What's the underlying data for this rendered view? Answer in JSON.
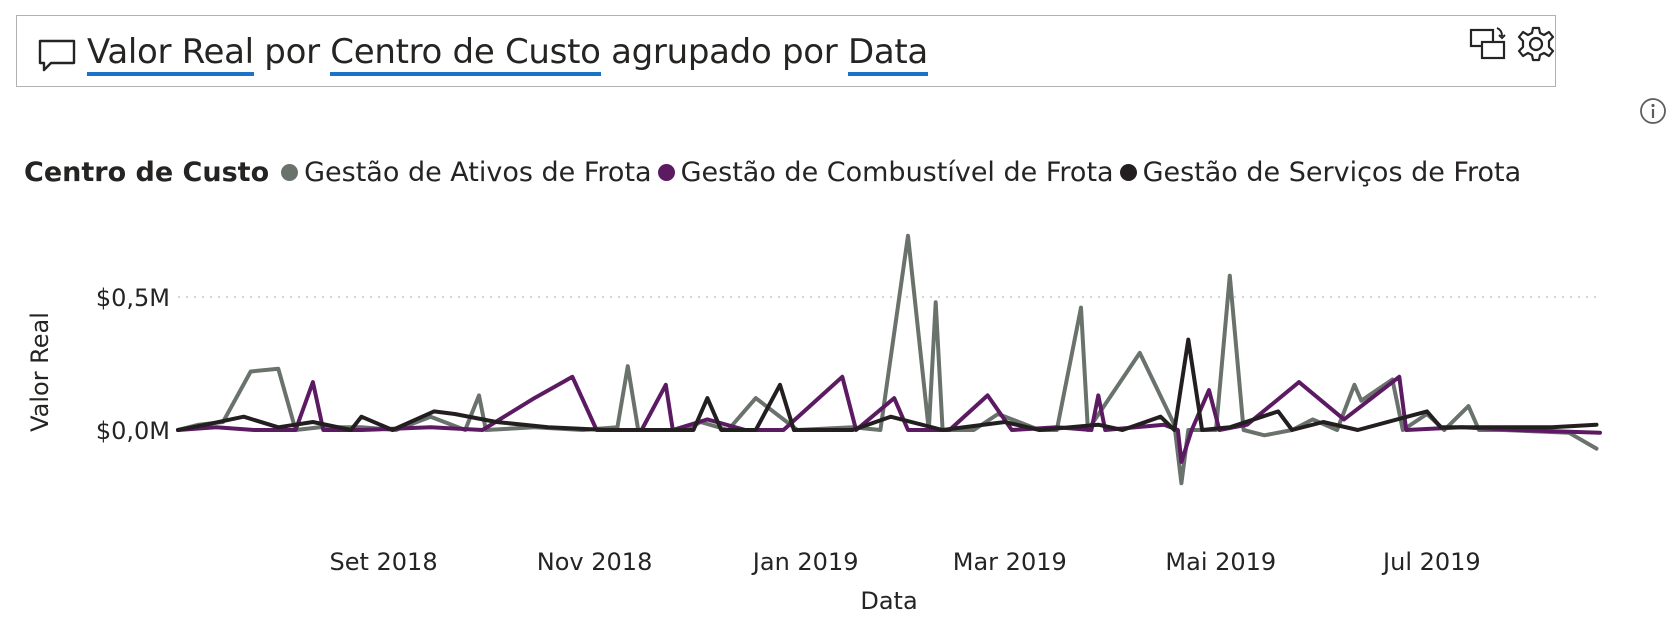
{
  "qa": {
    "parts": [
      {
        "text": "Valor Real",
        "term": true
      },
      {
        "text": " por ",
        "term": false
      },
      {
        "text": "Centro de Custo",
        "term": true
      },
      {
        "text": " agrupado por ",
        "term": false
      },
      {
        "text": "Data",
        "term": true
      }
    ]
  },
  "icons": {
    "comment": "comment-icon",
    "switch": "switch-visual-icon",
    "settings": "gear-icon",
    "info": "info-icon"
  },
  "chart_data": {
    "type": "line",
    "title": "",
    "legend_title": "Centro de Custo",
    "legend_position": "top-left",
    "xlabel": "Data",
    "ylabel": "Valor Real",
    "x_tick_labels": [
      "Set 2018",
      "Nov 2018",
      "Jan 2019",
      "Mar 2019",
      "Mai 2019",
      "Jul 2019"
    ],
    "x_ticks": [
      "2018-09-01",
      "2018-11-01",
      "2019-01-01",
      "2019-03-01",
      "2019-05-01",
      "2019-07-01"
    ],
    "x_range": [
      "2018-07-14",
      "2019-08-29"
    ],
    "y_tick_labels": [
      "$0,0M",
      "$0,5M"
    ],
    "y_ticks": [
      0,
      0.5
    ],
    "y_unit": "M",
    "ylim": [
      -0.25,
      0.8
    ],
    "grid": "horizontal dotted",
    "series": [
      {
        "name": "Gestão de Ativos de Frota",
        "color": "#6a726c",
        "points": [
          [
            "2018-07-14",
            0.0
          ],
          [
            "2018-07-20",
            0.02
          ],
          [
            "2018-07-27",
            0.03
          ],
          [
            "2018-08-04",
            0.22
          ],
          [
            "2018-08-12",
            0.23
          ],
          [
            "2018-08-17",
            0.0
          ],
          [
            "2018-08-24",
            0.01
          ],
          [
            "2018-09-05",
            0.01
          ],
          [
            "2018-09-15",
            0.0
          ],
          [
            "2018-09-25",
            0.05
          ],
          [
            "2018-10-05",
            0.0
          ],
          [
            "2018-10-09",
            0.13
          ],
          [
            "2018-10-11",
            0.0
          ],
          [
            "2018-10-25",
            0.01
          ],
          [
            "2018-11-08",
            0.0
          ],
          [
            "2018-11-18",
            0.01
          ],
          [
            "2018-11-21",
            0.24
          ],
          [
            "2018-11-24",
            0.0
          ],
          [
            "2018-12-08",
            0.0
          ],
          [
            "2018-12-12",
            0.03
          ],
          [
            "2018-12-20",
            0.0
          ],
          [
            "2018-12-28",
            0.12
          ],
          [
            "2019-01-09",
            0.0
          ],
          [
            "2019-01-25",
            0.01
          ],
          [
            "2019-02-02",
            0.0
          ],
          [
            "2019-02-10",
            0.73
          ],
          [
            "2019-02-16",
            0.0
          ],
          [
            "2019-02-18",
            0.48
          ],
          [
            "2019-02-20",
            0.0
          ],
          [
            "2019-03-01",
            0.0
          ],
          [
            "2019-03-08",
            0.06
          ],
          [
            "2019-03-20",
            0.0
          ],
          [
            "2019-03-25",
            0.0
          ],
          [
            "2019-04-01",
            0.46
          ],
          [
            "2019-04-03",
            0.0
          ],
          [
            "2019-04-18",
            0.29
          ],
          [
            "2019-04-28",
            0.02
          ],
          [
            "2019-04-30",
            -0.2
          ],
          [
            "2019-05-02",
            0.0
          ],
          [
            "2019-05-10",
            0.0
          ],
          [
            "2019-05-14",
            0.58
          ],
          [
            "2019-05-18",
            0.0
          ],
          [
            "2019-05-24",
            -0.02
          ],
          [
            "2019-06-01",
            0.0
          ],
          [
            "2019-06-07",
            0.04
          ],
          [
            "2019-06-14",
            0.0
          ],
          [
            "2019-06-19",
            0.17
          ],
          [
            "2019-06-21",
            0.11
          ],
          [
            "2019-06-30",
            0.19
          ],
          [
            "2019-07-03",
            0.0
          ],
          [
            "2019-07-10",
            0.06
          ],
          [
            "2019-07-15",
            0.0
          ],
          [
            "2019-07-22",
            0.09
          ],
          [
            "2019-07-25",
            0.0
          ],
          [
            "2019-08-01",
            0.0
          ],
          [
            "2019-08-20",
            -0.01
          ],
          [
            "2019-08-28",
            -0.07
          ]
        ]
      },
      {
        "name": "Gestão de Combustível de Frota",
        "color": "#5c1a62",
        "points": [
          [
            "2018-07-14",
            0.0
          ],
          [
            "2018-07-25",
            0.01
          ],
          [
            "2018-08-05",
            0.0
          ],
          [
            "2018-08-17",
            0.0
          ],
          [
            "2018-08-22",
            0.18
          ],
          [
            "2018-08-25",
            0.0
          ],
          [
            "2018-09-05",
            0.0
          ],
          [
            "2018-09-25",
            0.01
          ],
          [
            "2018-10-10",
            0.0
          ],
          [
            "2018-10-25",
            0.12
          ],
          [
            "2018-11-05",
            0.2
          ],
          [
            "2018-11-12",
            0.0
          ],
          [
            "2018-11-25",
            0.0
          ],
          [
            "2018-12-02",
            0.17
          ],
          [
            "2018-12-04",
            0.0
          ],
          [
            "2018-12-14",
            0.04
          ],
          [
            "2018-12-25",
            0.0
          ],
          [
            "2019-01-05",
            0.0
          ],
          [
            "2019-01-22",
            0.2
          ],
          [
            "2019-01-26",
            0.0
          ],
          [
            "2019-02-06",
            0.12
          ],
          [
            "2019-02-10",
            0.0
          ],
          [
            "2019-02-22",
            0.0
          ],
          [
            "2019-03-05",
            0.13
          ],
          [
            "2019-03-12",
            0.0
          ],
          [
            "2019-03-25",
            0.01
          ],
          [
            "2019-04-04",
            0.0
          ],
          [
            "2019-04-06",
            0.13
          ],
          [
            "2019-04-08",
            0.0
          ],
          [
            "2019-04-25",
            0.02
          ],
          [
            "2019-04-29",
            0.0
          ],
          [
            "2019-04-30",
            -0.12
          ],
          [
            "2019-05-03",
            0.0
          ],
          [
            "2019-05-08",
            0.15
          ],
          [
            "2019-05-11",
            0.0
          ],
          [
            "2019-05-19",
            0.02
          ],
          [
            "2019-06-03",
            0.18
          ],
          [
            "2019-06-16",
            0.04
          ],
          [
            "2019-07-02",
            0.2
          ],
          [
            "2019-07-04",
            0.0
          ],
          [
            "2019-07-20",
            0.01
          ],
          [
            "2019-08-05",
            0.0
          ],
          [
            "2019-08-29",
            -0.01
          ]
        ]
      },
      {
        "name": "Gestão de Serviços de Frota",
        "color": "#231f20",
        "points": [
          [
            "2018-07-14",
            0.0
          ],
          [
            "2018-07-22",
            0.02
          ],
          [
            "2018-08-02",
            0.05
          ],
          [
            "2018-08-12",
            0.01
          ],
          [
            "2018-08-22",
            0.03
          ],
          [
            "2018-09-02",
            0.0
          ],
          [
            "2018-09-05",
            0.05
          ],
          [
            "2018-09-14",
            0.0
          ],
          [
            "2018-09-26",
            0.07
          ],
          [
            "2018-10-02",
            0.06
          ],
          [
            "2018-10-14",
            0.03
          ],
          [
            "2018-10-29",
            0.01
          ],
          [
            "2018-11-15",
            0.0
          ],
          [
            "2018-12-10",
            0.0
          ],
          [
            "2018-12-14",
            0.12
          ],
          [
            "2018-12-18",
            0.0
          ],
          [
            "2018-12-28",
            0.0
          ],
          [
            "2019-01-04",
            0.17
          ],
          [
            "2019-01-08",
            0.0
          ],
          [
            "2019-01-25",
            0.0
          ],
          [
            "2019-02-05",
            0.05
          ],
          [
            "2019-02-20",
            0.0
          ],
          [
            "2019-03-10",
            0.03
          ],
          [
            "2019-03-20",
            0.0
          ],
          [
            "2019-04-06",
            0.02
          ],
          [
            "2019-04-13",
            0.0
          ],
          [
            "2019-04-24",
            0.05
          ],
          [
            "2019-04-28",
            0.0
          ],
          [
            "2019-05-02",
            0.34
          ],
          [
            "2019-05-06",
            0.0
          ],
          [
            "2019-05-14",
            0.01
          ],
          [
            "2019-05-28",
            0.07
          ],
          [
            "2019-06-01",
            0.0
          ],
          [
            "2019-06-10",
            0.03
          ],
          [
            "2019-06-20",
            0.0
          ],
          [
            "2019-07-10",
            0.07
          ],
          [
            "2019-07-14",
            0.01
          ],
          [
            "2019-07-28",
            0.01
          ],
          [
            "2019-08-15",
            0.01
          ],
          [
            "2019-08-28",
            0.02
          ]
        ]
      }
    ]
  }
}
